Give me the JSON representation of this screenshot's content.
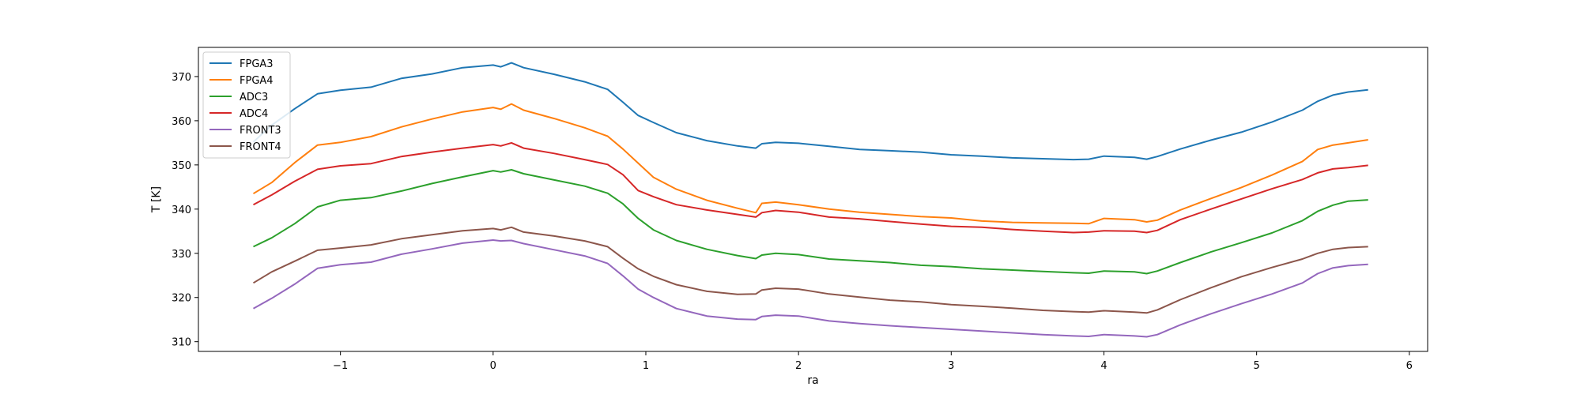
{
  "chart_data": {
    "type": "line",
    "xlabel": "ra",
    "ylabel": "T [K]",
    "xlim": [
      -1.93,
      6.12
    ],
    "ylim": [
      307.8,
      376.6
    ],
    "x_ticks": [
      -1,
      0,
      1,
      2,
      3,
      4,
      5,
      6
    ],
    "y_ticks": [
      310,
      320,
      330,
      340,
      350,
      360,
      370
    ],
    "grid": false,
    "legend_position": "upper-left",
    "x": [
      -1.57,
      -1.45,
      -1.3,
      -1.15,
      -1.0,
      -0.8,
      -0.6,
      -0.4,
      -0.2,
      0.0,
      0.05,
      0.12,
      0.2,
      0.4,
      0.6,
      0.75,
      0.85,
      0.95,
      1.05,
      1.2,
      1.4,
      1.6,
      1.72,
      1.76,
      1.85,
      2.0,
      2.2,
      2.4,
      2.6,
      2.8,
      3.0,
      3.2,
      3.4,
      3.6,
      3.8,
      3.9,
      4.0,
      4.2,
      4.28,
      4.35,
      4.5,
      4.7,
      4.9,
      5.1,
      5.3,
      5.4,
      5.5,
      5.6,
      5.73
    ],
    "series": [
      {
        "name": "FPGA3",
        "color": "#1f77b4",
        "values": [
          355.2,
          359.0,
          362.7,
          366.1,
          366.9,
          367.6,
          369.6,
          370.6,
          372.0,
          372.6,
          372.2,
          373.1,
          372.0,
          370.5,
          368.8,
          367.1,
          364.2,
          361.2,
          359.6,
          357.3,
          355.5,
          354.3,
          353.8,
          354.8,
          355.1,
          354.9,
          354.2,
          353.5,
          353.2,
          352.9,
          352.3,
          352.0,
          351.6,
          351.4,
          351.2,
          351.3,
          352.0,
          351.7,
          351.3,
          351.9,
          353.6,
          355.6,
          357.4,
          359.7,
          362.4,
          364.4,
          365.8,
          366.5,
          367.0
        ]
      },
      {
        "name": "FPGA4",
        "color": "#ff7f0e",
        "values": [
          343.5,
          346.0,
          350.5,
          354.5,
          355.1,
          356.4,
          358.6,
          360.4,
          362.0,
          363.0,
          362.6,
          363.8,
          362.4,
          360.5,
          358.4,
          356.5,
          353.6,
          350.4,
          347.2,
          344.5,
          342.0,
          340.2,
          339.2,
          341.3,
          341.6,
          341.0,
          340.0,
          339.3,
          338.8,
          338.3,
          338.0,
          337.3,
          337.0,
          336.9,
          336.8,
          336.7,
          337.9,
          337.6,
          337.1,
          337.5,
          339.8,
          342.4,
          344.9,
          347.7,
          350.8,
          353.5,
          354.5,
          355.0,
          355.7
        ]
      },
      {
        "name": "ADC3",
        "color": "#2ca02c",
        "values": [
          331.5,
          333.5,
          336.7,
          340.5,
          342.0,
          342.6,
          344.1,
          345.8,
          347.3,
          348.7,
          348.4,
          348.9,
          348.0,
          346.6,
          345.2,
          343.6,
          341.2,
          337.9,
          335.3,
          332.9,
          330.9,
          329.5,
          328.8,
          329.6,
          330.0,
          329.7,
          328.7,
          328.3,
          327.9,
          327.3,
          327.0,
          326.5,
          326.2,
          325.9,
          325.6,
          325.5,
          326.0,
          325.8,
          325.4,
          326.0,
          327.9,
          330.3,
          332.4,
          334.6,
          337.4,
          339.5,
          340.9,
          341.8,
          342.1
        ]
      },
      {
        "name": "ADC4",
        "color": "#d62728",
        "values": [
          341.0,
          343.2,
          346.3,
          349.0,
          349.8,
          350.3,
          351.9,
          352.9,
          353.8,
          354.6,
          354.3,
          355.0,
          353.8,
          352.6,
          351.2,
          350.1,
          347.8,
          344.2,
          342.8,
          341.0,
          339.8,
          338.8,
          338.2,
          339.2,
          339.7,
          339.3,
          338.2,
          337.8,
          337.2,
          336.6,
          336.1,
          335.9,
          335.4,
          335.0,
          334.7,
          334.8,
          335.1,
          335.0,
          334.7,
          335.2,
          337.6,
          340.0,
          342.3,
          344.6,
          346.7,
          348.2,
          349.1,
          349.4,
          349.9
        ]
      },
      {
        "name": "FRONT3",
        "color": "#9467bd",
        "values": [
          317.5,
          319.8,
          323.0,
          326.6,
          327.4,
          328.0,
          329.8,
          331.0,
          332.3,
          333.0,
          332.8,
          332.9,
          332.2,
          330.8,
          329.4,
          327.7,
          324.9,
          321.9,
          320.0,
          317.5,
          315.8,
          315.1,
          315.0,
          315.7,
          316.0,
          315.8,
          314.7,
          314.1,
          313.6,
          313.2,
          312.8,
          312.4,
          312.0,
          311.6,
          311.3,
          311.2,
          311.6,
          311.3,
          311.1,
          311.6,
          313.8,
          316.3,
          318.6,
          320.8,
          323.3,
          325.4,
          326.7,
          327.2,
          327.5
        ]
      },
      {
        "name": "FRONT4",
        "color": "#8c564b",
        "values": [
          323.3,
          325.8,
          328.2,
          330.7,
          331.2,
          331.9,
          333.3,
          334.2,
          335.1,
          335.6,
          335.3,
          335.9,
          334.8,
          333.9,
          332.8,
          331.5,
          328.9,
          326.5,
          324.8,
          322.9,
          321.4,
          320.7,
          320.8,
          321.7,
          322.1,
          321.9,
          320.8,
          320.1,
          319.4,
          319.0,
          318.4,
          318.0,
          317.6,
          317.1,
          316.8,
          316.7,
          317.0,
          316.7,
          316.5,
          317.2,
          319.5,
          322.2,
          324.7,
          326.8,
          328.7,
          330.0,
          330.9,
          331.3,
          331.5
        ]
      }
    ]
  }
}
